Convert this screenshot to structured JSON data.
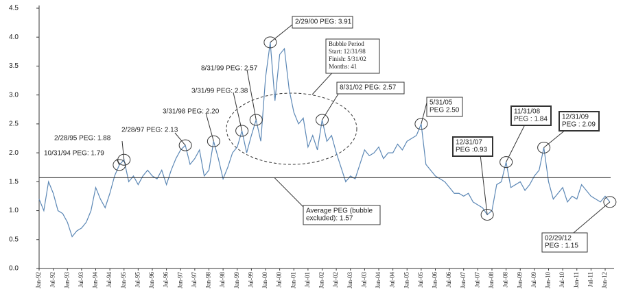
{
  "chart_data": {
    "type": "line",
    "categories": [
      "Jan-92",
      null,
      null,
      "Jul-92",
      null,
      null,
      "Jan-93",
      null,
      null,
      "Jul-93",
      null,
      null,
      "Jan-94",
      null,
      null,
      "Jul-94",
      null,
      null,
      "Jan-95",
      null,
      null,
      "Jul-95",
      null,
      null,
      "Jan-96",
      null,
      null,
      "Jul-96",
      null,
      null,
      "Jan-97",
      null,
      null,
      "Jul-97",
      null,
      null,
      "Jan-98",
      null,
      null,
      "Jul-98",
      null,
      null,
      "Jan-99",
      null,
      null,
      "Jul-99",
      null,
      null,
      "Jan-00",
      null,
      null,
      "Jul-00",
      null,
      null,
      "Jan-01",
      null,
      null,
      "Jul-01",
      null,
      null,
      "Jan-02",
      null,
      null,
      "Jul-02",
      null,
      null,
      "Jan-03",
      null,
      null,
      "Jul-03",
      null,
      null,
      "Jan-04",
      null,
      null,
      "Jul-04",
      null,
      null,
      "Jan-05",
      null,
      null,
      "Jul-05",
      null,
      null,
      "Jan-06",
      null,
      null,
      "Jul-06",
      null,
      null,
      "Jan-07",
      null,
      null,
      "Jul-07",
      null,
      null,
      "Jan-08",
      null,
      null,
      "Jul-08",
      null,
      null,
      "Jan-09",
      null,
      null,
      "Jul-09",
      null,
      null,
      "Jan-10",
      null,
      null,
      "Jul-10",
      null,
      null,
      "Jan-11",
      null,
      null,
      "Jul-11",
      null,
      null,
      "Jan-12",
      null
    ],
    "series": [
      {
        "color": "#5b87b5",
        "values": [
          1.2,
          1.0,
          1.5,
          1.3,
          1.0,
          0.95,
          0.8,
          0.55,
          0.65,
          0.7,
          0.8,
          1.0,
          1.4,
          1.2,
          1.05,
          1.3,
          1.6,
          1.79,
          1.88,
          1.5,
          1.6,
          1.45,
          1.6,
          1.7,
          1.6,
          1.55,
          1.7,
          1.45,
          1.7,
          1.9,
          2.05,
          2.13,
          1.8,
          1.9,
          2.05,
          1.6,
          1.7,
          2.2,
          1.9,
          1.55,
          1.75,
          2.0,
          2.1,
          2.38,
          2.0,
          2.3,
          2.57,
          2.2,
          3.3,
          3.91,
          2.9,
          3.7,
          3.8,
          3.1,
          2.7,
          2.5,
          2.6,
          2.1,
          2.3,
          2.05,
          2.57,
          2.2,
          2.3,
          2.0,
          1.75,
          1.5,
          1.6,
          1.55,
          1.8,
          2.05,
          1.95,
          2.0,
          2.1,
          1.9,
          2.0,
          2.0,
          2.15,
          2.05,
          2.2,
          2.25,
          2.3,
          2.5,
          1.8,
          1.7,
          1.6,
          1.55,
          1.5,
          1.4,
          1.3,
          1.3,
          1.25,
          1.3,
          1.15,
          1.1,
          1.05,
          0.93,
          1.0,
          1.45,
          1.5,
          1.84,
          1.4,
          1.45,
          1.5,
          1.35,
          1.45,
          1.6,
          1.7,
          2.09,
          1.5,
          1.2,
          1.3,
          1.4,
          1.15,
          1.25,
          1.2,
          1.45,
          1.35,
          1.25,
          1.2,
          1.15,
          1.25,
          1.15
        ]
      }
    ],
    "ylim": [
      0,
      4.5
    ],
    "yticks": [
      {
        "value": 0,
        "label": "0.0"
      },
      {
        "value": 0.5,
        "label": "0.5"
      },
      {
        "value": 1,
        "label": "1.0"
      },
      {
        "value": 1.5,
        "label": "1.5"
      },
      {
        "value": 2,
        "label": "2.0"
      },
      {
        "value": 2.5,
        "label": "2.5"
      },
      {
        "value": 3,
        "label": "3.0"
      },
      {
        "value": 3.5,
        "label": "3.5"
      },
      {
        "value": 4,
        "label": "4.0"
      },
      {
        "value": 4.5,
        "label": "4.5"
      }
    ],
    "average": {
      "value": 1.57,
      "lines": [
        "Average PEG (bubble",
        "excluded): 1.57"
      ]
    },
    "bubble": {
      "lines": [
        "Bubble Period",
        "Start: 12/31/98",
        "Finish: 5/31/02",
        "Months: 41"
      ]
    },
    "annotations": [
      {
        "lines": [
          "10/31/94 PEG: 1.79"
        ]
      },
      {
        "lines": [
          "2/28/95 PEG: 1.88"
        ]
      },
      {
        "lines": [
          "2/28/97 PEG: 2.13"
        ]
      },
      {
        "lines": [
          "3/31/98 PEG: 2.20"
        ]
      },
      {
        "lines": [
          "3/31/99 PEG: 2.38"
        ]
      },
      {
        "lines": [
          "8/31/99 PEG: 2.57"
        ]
      },
      {
        "lines": [
          "2/29/00 PEG: 3.91"
        ]
      },
      {
        "lines": [
          "8/31/02 PEG: 2.57"
        ]
      },
      {
        "lines": [
          "5/31/05",
          "PEG 2.50"
        ]
      },
      {
        "lines": [
          "12/31/07",
          "PEG :0.93"
        ]
      },
      {
        "lines": [
          "11/31/08",
          "PEG : 1.84"
        ]
      },
      {
        "lines": [
          "12/31/09",
          "PEG : 2.09"
        ]
      },
      {
        "lines": [
          "02/29/12",
          "PEG : 1.15"
        ]
      }
    ]
  }
}
